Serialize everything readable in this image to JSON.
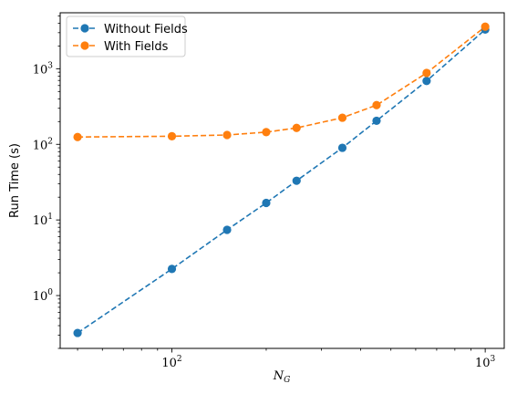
{
  "chart_data": {
    "type": "line",
    "x_scale": "log",
    "y_scale": "log",
    "xlim": [
      44,
      1150
    ],
    "ylim": [
      0.2,
      5500
    ],
    "xlabel": "N_G",
    "ylabel": "Run Time (s)",
    "x_ticks": [
      {
        "value": 100,
        "base": "10",
        "exp": "2"
      },
      {
        "value": 1000,
        "base": "10",
        "exp": "3"
      }
    ],
    "y_ticks": [
      {
        "value": 1,
        "base": "10",
        "exp": "0"
      },
      {
        "value": 10,
        "base": "10",
        "exp": "1"
      },
      {
        "value": 100,
        "base": "10",
        "exp": "2"
      },
      {
        "value": 1000,
        "base": "10",
        "exp": "3"
      }
    ],
    "grid": false,
    "legend_position": "top-left",
    "x": [
      50,
      100,
      150,
      200,
      250,
      350,
      450,
      650,
      1000
    ],
    "series": [
      {
        "name": "Without Fields",
        "color": "#1f77b4",
        "values": [
          0.32,
          2.25,
          7.4,
          16.8,
          33,
          90,
          205,
          690,
          3300
        ]
      },
      {
        "name": "With Fields",
        "color": "#ff7f0e",
        "values": [
          125,
          128,
          133,
          145,
          165,
          225,
          330,
          880,
          3600
        ]
      }
    ]
  }
}
